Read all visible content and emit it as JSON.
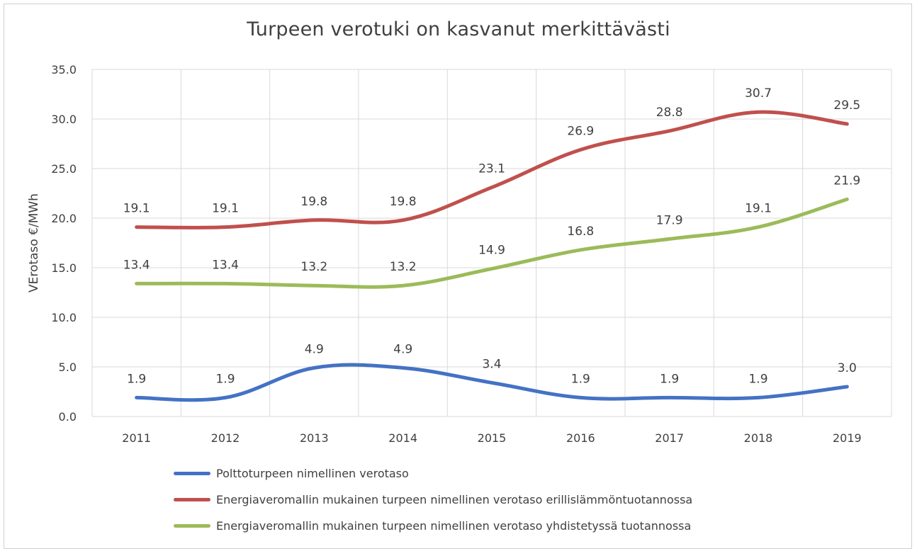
{
  "chart_data": {
    "type": "line",
    "title": "Turpeen verotuki on kasvanut merkittävästi",
    "ylabel": "VErotaso €/MWh",
    "xlabel": "",
    "ylim": [
      0,
      35
    ],
    "y_ticks": [
      "0.0",
      "5.0",
      "10.0",
      "15.0",
      "20.0",
      "25.0",
      "30.0",
      "35.0"
    ],
    "categories": [
      "2011",
      "2012",
      "2013",
      "2014",
      "2015",
      "2016",
      "2017",
      "2018",
      "2019"
    ],
    "grid": true,
    "legend_position": "bottom",
    "series": [
      {
        "name": "Polttoturpeen nimellinen verotaso",
        "color": "#4472C4",
        "values": [
          1.9,
          1.9,
          4.9,
          4.9,
          3.4,
          1.9,
          1.9,
          1.9,
          3.0
        ],
        "labels": [
          "1.9",
          "1.9",
          "4.9",
          "4.9",
          "3.4",
          "1.9",
          "1.9",
          "1.9",
          "3.0"
        ]
      },
      {
        "name": "Energiaveromallin mukainen turpeen nimellinen verotaso erillislämmöntuotannossa",
        "color": "#C0504D",
        "values": [
          19.1,
          19.1,
          19.8,
          19.8,
          23.1,
          26.9,
          28.8,
          30.7,
          29.5
        ],
        "labels": [
          "19.1",
          "19.1",
          "19.8",
          "19.8",
          "23.1",
          "26.9",
          "28.8",
          "30.7",
          "29.5"
        ]
      },
      {
        "name": "Energiaveromallin mukainen turpeen nimellinen verotaso yhdistetyssä tuotannossa",
        "color": "#9BBB59",
        "values": [
          13.4,
          13.4,
          13.2,
          13.2,
          14.9,
          16.8,
          17.9,
          19.1,
          21.9
        ],
        "labels": [
          "13.4",
          "13.4",
          "13.2",
          "13.2",
          "14.9",
          "16.8",
          "17.9",
          "19.1",
          "21.9"
        ]
      }
    ]
  }
}
